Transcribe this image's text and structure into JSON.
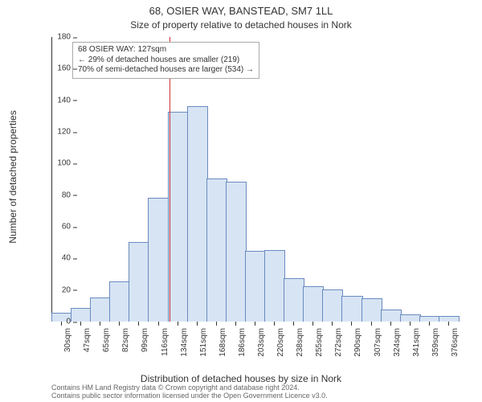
{
  "chart": {
    "title": "68, OSIER WAY, BANSTEAD, SM7 1LL",
    "subtitle": "Size of property relative to detached houses in Nork",
    "ylabel": "Number of detached properties",
    "xlabel": "Distribution of detached houses by size in Nork",
    "type": "histogram",
    "ylim": [
      0,
      180
    ],
    "ytick_step": 20,
    "yticks": [
      0,
      20,
      40,
      60,
      80,
      100,
      120,
      140,
      160,
      180
    ],
    "x_ticks": [
      "30sqm",
      "47sqm",
      "65sqm",
      "82sqm",
      "99sqm",
      "116sqm",
      "134sqm",
      "151sqm",
      "168sqm",
      "186sqm",
      "203sqm",
      "220sqm",
      "238sqm",
      "255sqm",
      "272sqm",
      "290sqm",
      "307sqm",
      "324sqm",
      "341sqm",
      "359sqm",
      "376sqm"
    ],
    "bars": {
      "values": [
        5,
        8,
        15,
        25,
        50,
        78,
        132,
        136,
        90,
        88,
        44,
        45,
        27,
        22,
        20,
        16,
        14,
        7,
        4,
        3,
        3
      ],
      "fill_color": "#d7e4f4",
      "border_color": "#6a8bbf",
      "bar_gap_ratio": 0.0
    },
    "reference_line": {
      "x_value": 127,
      "x_range": [
        30,
        376
      ],
      "color": "#cc3333"
    },
    "annotation": {
      "lines": [
        "68 OSIER WAY: 127sqm",
        "← 29% of detached houses are smaller (219)",
        "70% of semi-detached houses are larger (534) →"
      ]
    },
    "background_color": "#ffffff",
    "axis_color": "#333333",
    "attribution": [
      "Contains HM Land Registry data © Crown copyright and database right 2024.",
      "Contains public sector information licensed under the Open Government Licence v3.0."
    ],
    "fontsize_title": 13,
    "fontsize_labels": 12,
    "fontsize_ticks": 10,
    "fontsize_attr": 9
  }
}
